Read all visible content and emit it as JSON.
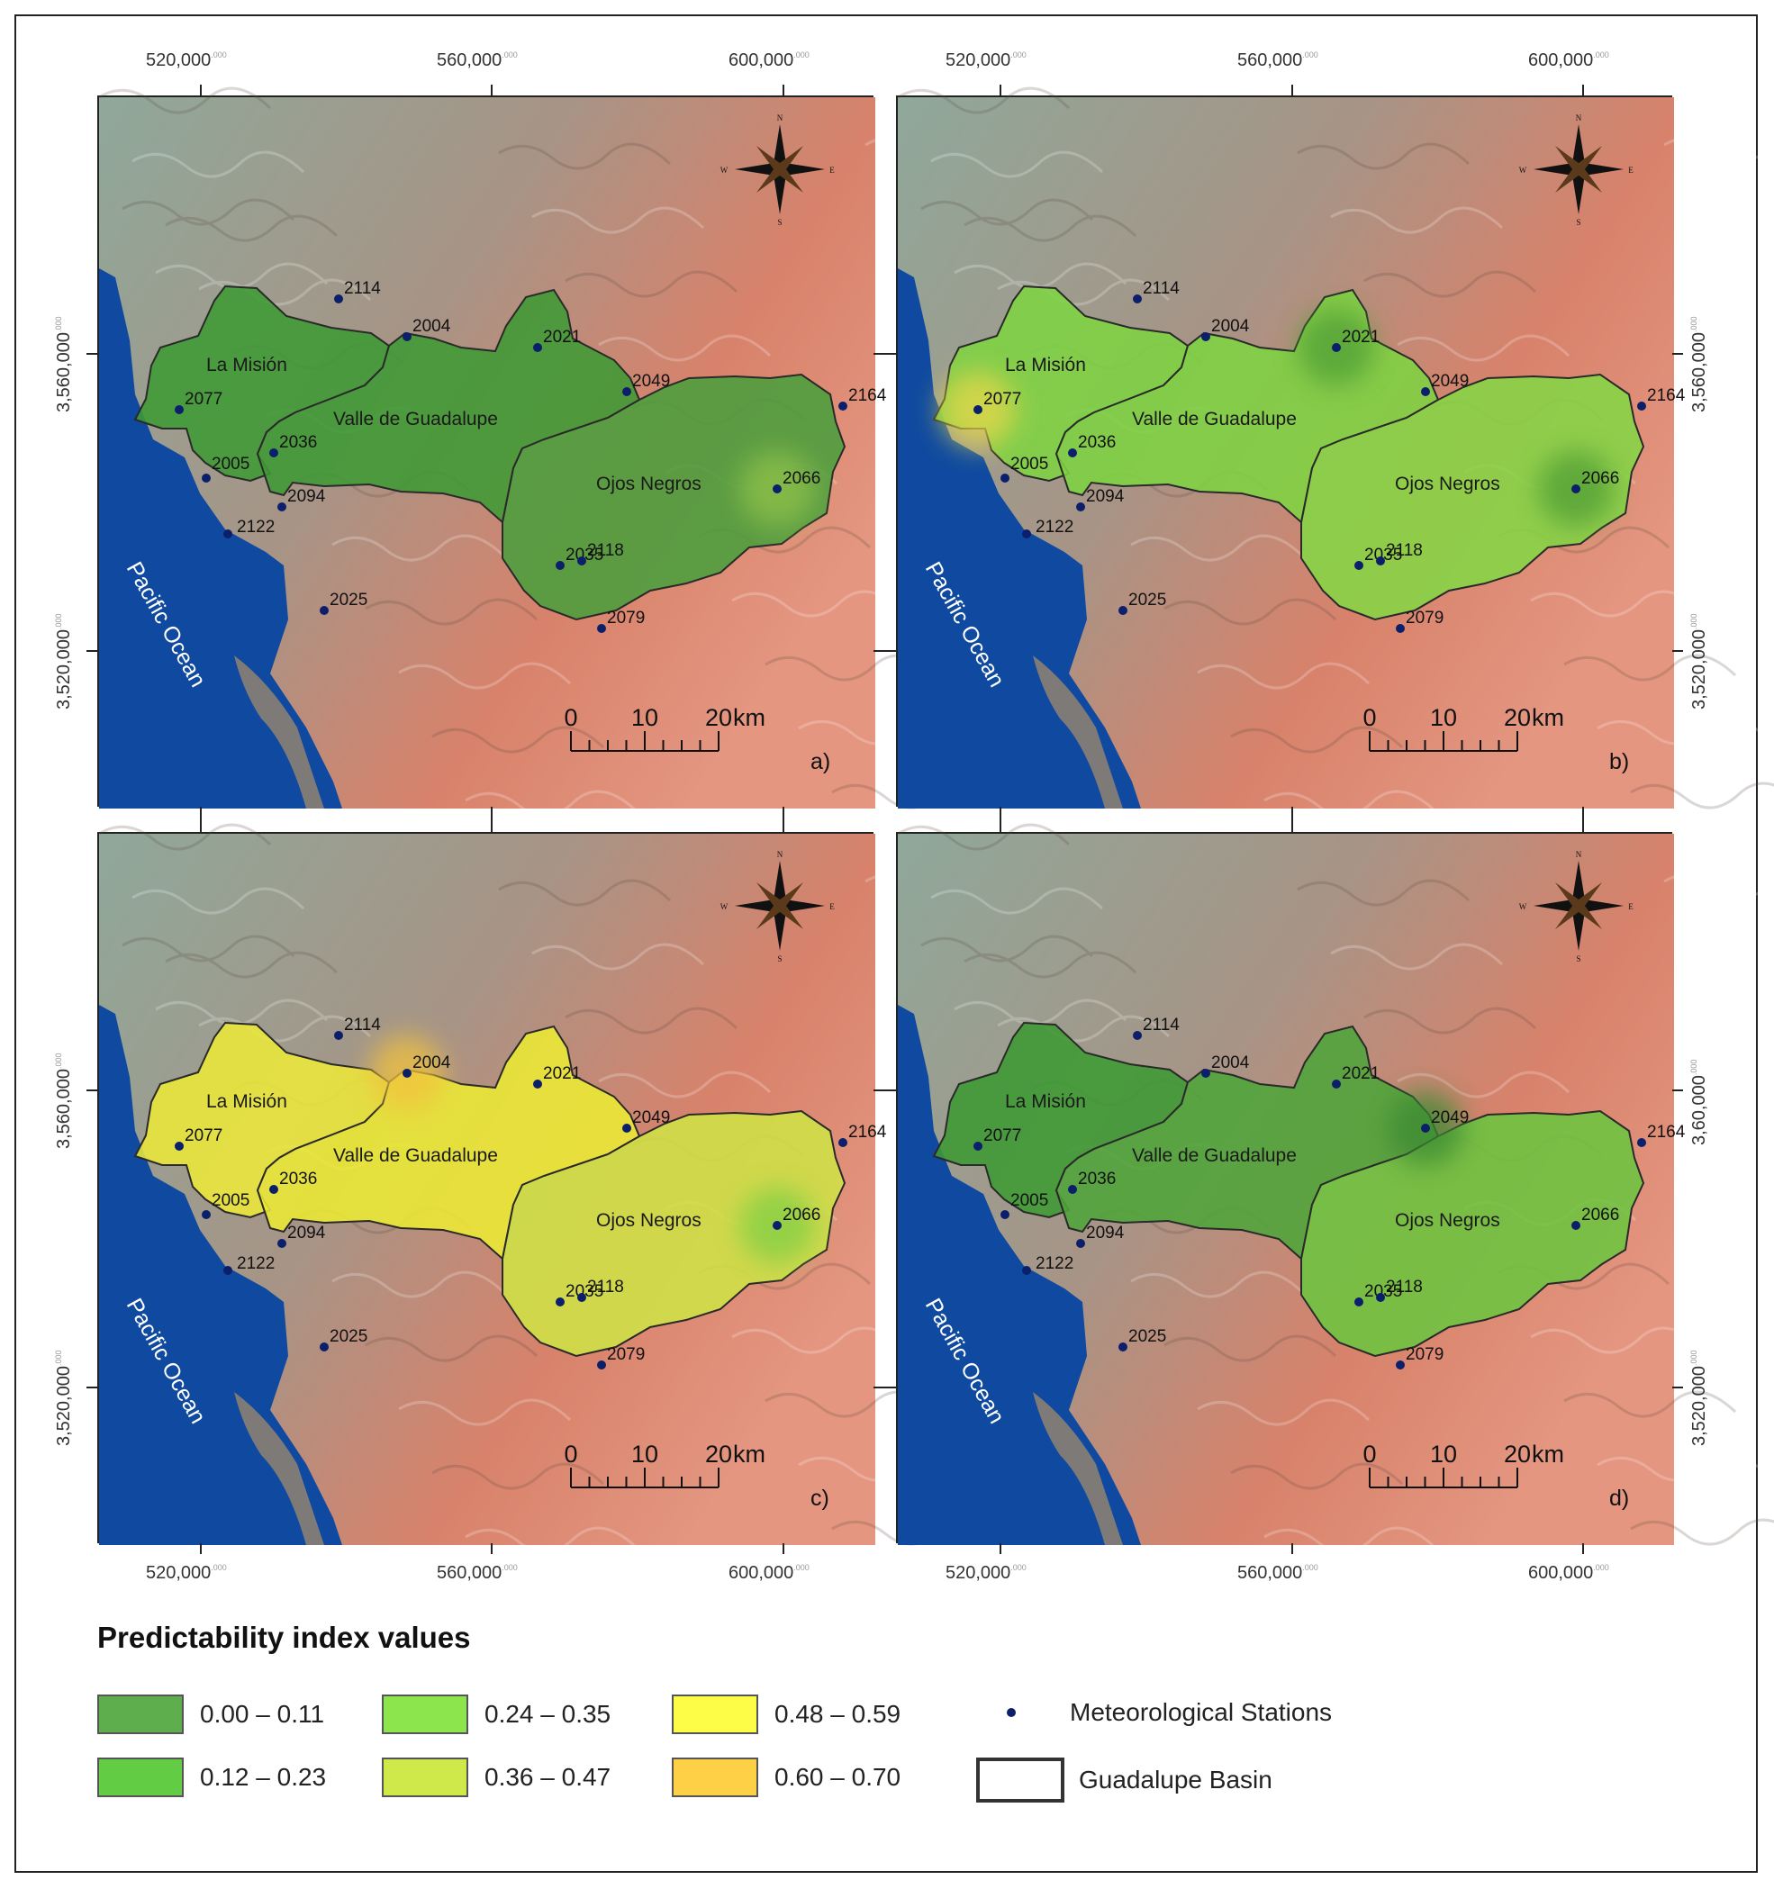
{
  "figure": {
    "x_ticks": [
      "520,000",
      "560,000",
      "600,000"
    ],
    "y_ticks": [
      "3,560,000",
      "3,520,000"
    ],
    "y_ticks_alt": [
      "3,60,000"
    ],
    "tick_suffix": ".000",
    "ocean_label": "Pacific Ocean",
    "basins": [
      "La Misión",
      "Valle de Guadalupe",
      "Ojos Negros"
    ],
    "scale_bar": {
      "labels": [
        "0",
        "10",
        "20"
      ],
      "unit": "km"
    },
    "compass": {
      "n": "N",
      "s": "S",
      "e": "E",
      "w": "W"
    },
    "stations": [
      "2114",
      "2004",
      "2021",
      "2049",
      "2164",
      "2077",
      "2036",
      "2005",
      "2094",
      "2122",
      "2066",
      "2035",
      "2118",
      "2079",
      "2025"
    ],
    "colors": {
      "ocean": "#0f4aa0",
      "terrain_low": "#8fa89a",
      "terrain_high": "#d8826b",
      "station": "#0b1f6a",
      "outline": "#2a2a2a"
    }
  },
  "panels": [
    {
      "label": "a)",
      "fills": {
        "lamision": "#3f9a34",
        "valle": "#3f9a34",
        "ojos": "#4a9e3c"
      },
      "hotspots": [
        {
          "station": "2066",
          "color": "#8fc24a"
        }
      ]
    },
    {
      "label": "b)",
      "fills": {
        "lamision": "#7ed442",
        "valle": "#7ed442",
        "ojos": "#85d646"
      },
      "hotspots": [
        {
          "station": "2077",
          "color": "#e8d84a"
        },
        {
          "station": "2021",
          "color": "#4f9e36"
        },
        {
          "station": "2066",
          "color": "#4f9e36"
        }
      ]
    },
    {
      "label": "c)",
      "fills": {
        "lamision": "#ece83a",
        "valle": "#ecea34",
        "ojos": "#cfe245"
      },
      "hotspots": [
        {
          "station": "2066",
          "color": "#7fcf45"
        },
        {
          "station": "2004",
          "color": "#f1c23c"
        }
      ]
    },
    {
      "label": "d)",
      "fills": {
        "lamision": "#3d9a33",
        "valle": "#4ea53a",
        "ojos": "#6cc540"
      },
      "hotspots": [
        {
          "station": "2049",
          "color": "#3a8a30"
        }
      ]
    }
  ],
  "legend": {
    "title": "Predictability index values",
    "classes": [
      {
        "label": "0.00 – 0.11",
        "color": "#5fae4e"
      },
      {
        "label": "0.12 – 0.23",
        "color": "#63cc45"
      },
      {
        "label": "0.24 – 0.35",
        "color": "#8de54d"
      },
      {
        "label": "0.36 – 0.47",
        "color": "#cfe84a"
      },
      {
        "label": "0.48 – 0.59",
        "color": "#fdfd48"
      },
      {
        "label": "0.60 – 0.70",
        "color": "#fdd046"
      }
    ],
    "stations_label": "Meteorological Stations",
    "basin_label": "Guadalupe Basin"
  }
}
